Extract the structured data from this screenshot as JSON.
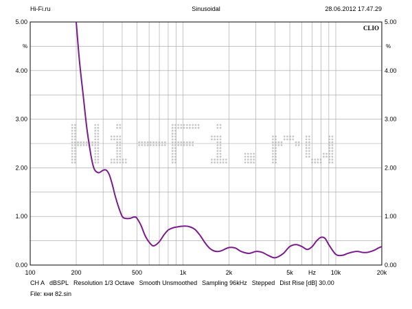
{
  "header": {
    "site": "Hi-Fi.ru",
    "mode": "Sinusoidal",
    "datetime": "28.06.2012 17.47.29"
  },
  "brand": "CLIO",
  "watermark": "Hi-Fi.ru",
  "footer": {
    "channel": "CH A",
    "units": "dBSPL",
    "resolution": "Resolution 1/3 Octave",
    "smooth": "Smooth Unsmoothed",
    "sampling": "Sampling 96kHz",
    "stepped": "Stepped",
    "dist_rise": "Dist Rise [dB] 30.00",
    "file": "File: кни 82.sin"
  },
  "colors": {
    "curve": "#7a1a8c",
    "grid": "#a0a0a0",
    "watermark": "#c8c8c8"
  },
  "chart_data": {
    "type": "line",
    "xscale": "log",
    "xlim": [
      100,
      20000
    ],
    "ylim": [
      0,
      5
    ],
    "yunit": "%",
    "xunit": "Hz",
    "grid": true,
    "x_ticks": [
      {
        "v": 100,
        "label": "100"
      },
      {
        "v": 200,
        "label": "200"
      },
      {
        "v": 500,
        "label": "500"
      },
      {
        "v": 1000,
        "label": "1k"
      },
      {
        "v": 2000,
        "label": "2k"
      },
      {
        "v": 5000,
        "label": "5k"
      },
      {
        "v": 10000,
        "label": "10k"
      },
      {
        "v": 20000,
        "label": "20k"
      }
    ],
    "y_ticks": [
      {
        "v": 0,
        "label": "0.00"
      },
      {
        "v": 1,
        "label": "1.00"
      },
      {
        "v": 2,
        "label": "2.00"
      },
      {
        "v": 3,
        "label": "3.00"
      },
      {
        "v": 4,
        "label": "4.00"
      },
      {
        "v": 5,
        "label": "5.00"
      }
    ],
    "series": [
      {
        "x": [
          200,
          210,
          222,
          235,
          250,
          262,
          280,
          300,
          315,
          330,
          345,
          360,
          380,
          400,
          420,
          450,
          480,
          500,
          530,
          570,
          620,
          650,
          700,
          750,
          800,
          850,
          900,
          1000,
          1100,
          1200,
          1300,
          1400,
          1500,
          1600,
          1700,
          1800,
          2000,
          2200,
          2400,
          2700,
          3000,
          3300,
          3600,
          4000,
          4500,
          5000,
          5500,
          6000,
          6500,
          7000,
          7500,
          8000,
          8500,
          9000,
          10000,
          11000,
          12000,
          13000,
          14000,
          15000,
          16000,
          17000,
          18000,
          19000,
          20000
        ],
        "y": [
          5.0,
          4.2,
          3.5,
          2.8,
          2.25,
          1.98,
          1.9,
          1.95,
          1.95,
          1.85,
          1.65,
          1.42,
          1.18,
          1.0,
          0.96,
          0.96,
          0.99,
          0.96,
          0.82,
          0.58,
          0.42,
          0.4,
          0.48,
          0.62,
          0.72,
          0.76,
          0.78,
          0.8,
          0.79,
          0.73,
          0.6,
          0.45,
          0.34,
          0.29,
          0.28,
          0.3,
          0.36,
          0.35,
          0.28,
          0.24,
          0.28,
          0.26,
          0.2,
          0.15,
          0.23,
          0.38,
          0.42,
          0.38,
          0.32,
          0.38,
          0.5,
          0.57,
          0.55,
          0.42,
          0.22,
          0.2,
          0.24,
          0.27,
          0.28,
          0.26,
          0.26,
          0.28,
          0.31,
          0.35,
          0.38
        ]
      }
    ]
  }
}
